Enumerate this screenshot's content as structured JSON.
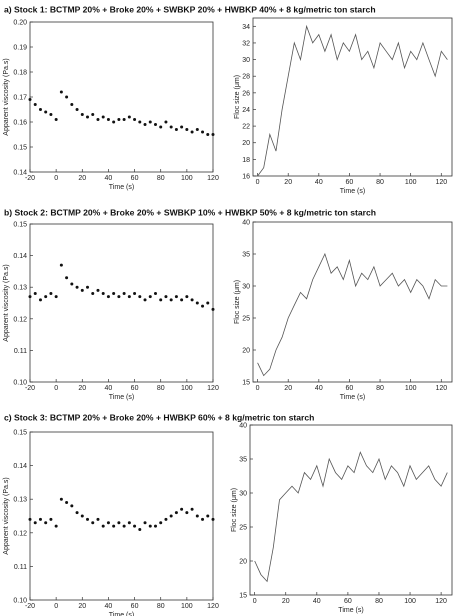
{
  "chart_data": [
    {
      "type": "scatter",
      "title": "a) Stock 1: BCTMP 20% + Broke 20% + SWBKP 20% + HWBKP 40% + 8 kg/metric ton starch",
      "xlabel": "Time (s)",
      "ylabel": "Apparent viscosity (Pa.s)",
      "color": "#111111",
      "x": [
        -20,
        -16,
        -12,
        -8,
        -4,
        0,
        4,
        8,
        12,
        16,
        20,
        24,
        28,
        32,
        36,
        40,
        44,
        48,
        52,
        56,
        60,
        64,
        68,
        72,
        76,
        80,
        84,
        88,
        92,
        96,
        100,
        104,
        108,
        112,
        116,
        120
      ],
      "values": [
        0.169,
        0.167,
        0.165,
        0.164,
        0.163,
        0.161,
        0.172,
        0.17,
        0.167,
        0.165,
        0.163,
        0.162,
        0.163,
        0.161,
        0.162,
        0.161,
        0.16,
        0.161,
        0.161,
        0.162,
        0.161,
        0.16,
        0.159,
        0.16,
        0.159,
        0.158,
        0.16,
        0.158,
        0.157,
        0.158,
        0.157,
        0.156,
        0.157,
        0.156,
        0.155,
        0.155
      ],
      "xlim": [
        -20,
        120
      ],
      "ylim": [
        0.14,
        0.2
      ],
      "xticks": [
        -20,
        0,
        20,
        40,
        60,
        80,
        100,
        120
      ],
      "yticks": [
        0.14,
        0.15,
        0.16,
        0.17,
        0.18,
        0.19,
        {
          "value": 0.2,
          "label": "0.20"
        }
      ]
    },
    {
      "type": "line",
      "xlabel": "Time (s)",
      "ylabel": "Floc size (μm)",
      "color": "#555555",
      "x": [
        0,
        4,
        8,
        12,
        16,
        20,
        24,
        28,
        32,
        36,
        40,
        44,
        48,
        52,
        56,
        60,
        64,
        68,
        72,
        76,
        80,
        84,
        88,
        92,
        96,
        100,
        104,
        108,
        112,
        116,
        120,
        124
      ],
      "values": [
        16,
        17,
        21,
        19,
        24,
        28,
        32,
        30,
        34,
        32,
        33,
        31,
        33,
        30,
        32,
        31,
        33,
        30,
        31,
        29,
        32,
        31,
        30,
        32,
        29,
        31,
        30,
        32,
        30,
        28,
        31,
        30
      ],
      "xlim": [
        -3,
        127
      ],
      "ylim": [
        16,
        35
      ],
      "xticks": [
        0,
        20,
        40,
        60,
        80,
        100,
        120
      ],
      "yticks": [
        16,
        18,
        20,
        22,
        24,
        26,
        28,
        30,
        32,
        34
      ]
    },
    {
      "type": "scatter",
      "title": "b) Stock 2: BCTMP 20% + Broke 20% + SWBKP 10% + HWBKP 50% + 8 kg/metric ton starch",
      "xlabel": "Time (s)",
      "ylabel": "Apparent viscosity (Pa.s)",
      "color": "#111111",
      "x": [
        -20,
        -16,
        -12,
        -8,
        -4,
        0,
        4,
        8,
        12,
        16,
        20,
        24,
        28,
        32,
        36,
        40,
        44,
        48,
        52,
        56,
        60,
        64,
        68,
        72,
        76,
        80,
        84,
        88,
        92,
        96,
        100,
        104,
        108,
        112,
        116,
        120
      ],
      "values": [
        0.127,
        0.128,
        0.126,
        0.127,
        0.128,
        0.127,
        0.137,
        0.133,
        0.131,
        0.13,
        0.129,
        0.13,
        0.128,
        0.129,
        0.128,
        0.127,
        0.128,
        0.127,
        0.128,
        0.127,
        0.128,
        0.127,
        0.126,
        0.127,
        0.128,
        0.126,
        0.127,
        0.126,
        0.127,
        0.126,
        0.127,
        0.126,
        0.125,
        0.124,
        0.125,
        0.123
      ],
      "xlim": [
        -20,
        120
      ],
      "ylim": [
        0.1,
        0.15
      ],
      "xticks": [
        -20,
        0,
        20,
        40,
        60,
        80,
        100,
        120
      ],
      "yticks": [
        {
          "value": 0.1,
          "label": "0.10"
        },
        0.11,
        0.12,
        0.13,
        0.14,
        0.15
      ]
    },
    {
      "type": "line",
      "xlabel": "Time (s)",
      "ylabel": "Floc size (μm)",
      "color": "#555555",
      "x": [
        0,
        4,
        8,
        12,
        16,
        20,
        24,
        28,
        32,
        36,
        40,
        44,
        48,
        52,
        56,
        60,
        64,
        68,
        72,
        76,
        80,
        84,
        88,
        92,
        96,
        100,
        104,
        108,
        112,
        116,
        120,
        124
      ],
      "values": [
        18,
        16,
        17,
        20,
        22,
        25,
        27,
        29,
        28,
        31,
        33,
        35,
        32,
        33,
        31,
        34,
        30,
        32,
        31,
        33,
        30,
        31,
        32,
        30,
        31,
        29,
        31,
        30,
        28,
        31,
        30,
        30
      ],
      "xlim": [
        -3,
        127
      ],
      "ylim": [
        15,
        40
      ],
      "xticks": [
        0,
        20,
        40,
        60,
        80,
        100,
        120
      ],
      "yticks": [
        15,
        20,
        25,
        30,
        35,
        40
      ]
    },
    {
      "type": "scatter",
      "title": "c) Stock 3: BCTMP 20% + Broke 20% + HWBKP 60% + 8 kg/metric ton starch",
      "xlabel": "Time (s)",
      "ylabel": "Apparent viscosity (Pa.s)",
      "color": "#111111",
      "x": [
        -20,
        -16,
        -12,
        -8,
        -4,
        0,
        4,
        8,
        12,
        16,
        20,
        24,
        28,
        32,
        36,
        40,
        44,
        48,
        52,
        56,
        60,
        64,
        68,
        72,
        76,
        80,
        84,
        88,
        92,
        96,
        100,
        104,
        108,
        112,
        116,
        120
      ],
      "values": [
        0.124,
        0.123,
        0.124,
        0.123,
        0.124,
        0.122,
        0.13,
        0.129,
        0.128,
        0.126,
        0.125,
        0.124,
        0.123,
        0.124,
        0.122,
        0.123,
        0.122,
        0.123,
        0.122,
        0.123,
        0.122,
        0.121,
        0.123,
        0.122,
        0.122,
        0.123,
        0.124,
        0.125,
        0.126,
        0.127,
        0.126,
        0.127,
        0.125,
        0.124,
        0.125,
        0.124
      ],
      "xlim": [
        -20,
        120
      ],
      "ylim": [
        0.1,
        0.15
      ],
      "xticks": [
        -20,
        0,
        20,
        40,
        60,
        80,
        100,
        120
      ],
      "yticks": [
        {
          "value": 0.1,
          "label": "0.10"
        },
        0.11,
        0.12,
        0.13,
        0.14,
        0.15
      ]
    },
    {
      "type": "line",
      "xlabel": "Time (s)",
      "ylabel": "Floc size (μm)",
      "color": "#555555",
      "x": [
        0,
        4,
        8,
        12,
        16,
        20,
        24,
        28,
        32,
        36,
        40,
        44,
        48,
        52,
        56,
        60,
        64,
        68,
        72,
        76,
        80,
        84,
        88,
        92,
        96,
        100,
        104,
        108,
        112,
        116,
        120,
        124
      ],
      "values": [
        20,
        18,
        17,
        22,
        29,
        30,
        31,
        30,
        33,
        32,
        34,
        31,
        35,
        33,
        32,
        34,
        33,
        36,
        34,
        33,
        35,
        32,
        34,
        33,
        31,
        34,
        32,
        33,
        34,
        32,
        31,
        33
      ],
      "xlim": [
        -3,
        127
      ],
      "ylim": [
        15,
        40
      ],
      "xticks": [
        0,
        20,
        40,
        60,
        80,
        100,
        120
      ],
      "yticks": [
        15,
        20,
        25,
        30,
        35,
        40
      ]
    }
  ]
}
